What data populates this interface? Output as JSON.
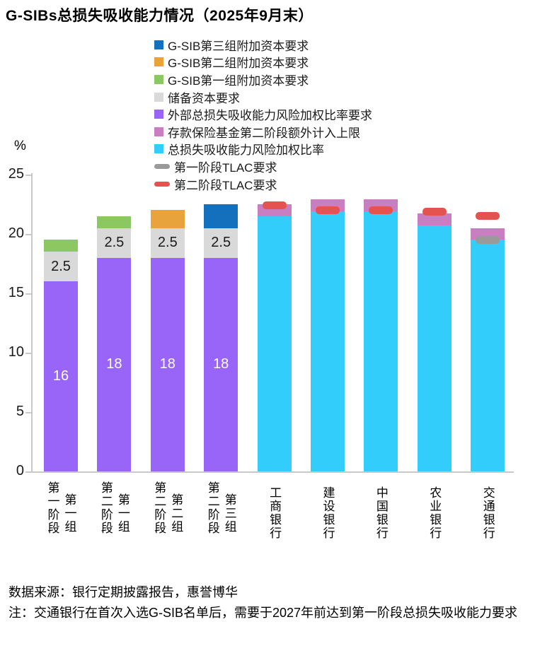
{
  "title": "G-SIBs总损失吸收能力情况（2025年9月末）",
  "footer": {
    "source": "数据来源：银行定期披露报告，惠誉博华",
    "note": "注：交通银行在首次入选G-SIB名单后，需要于2027年前达到第一阶段总损失吸收能力要求"
  },
  "colors": {
    "bucket3_blue": "#1470BD",
    "bucket2_orange": "#E8A33C",
    "bucket1_green": "#8CC862",
    "buffer_gray": "#D9D9D9",
    "tlac_req_purple": "#9865F8",
    "dif_pink": "#CA7EC2",
    "tlac_ratio_cyan": "#33CDFB",
    "phase1_dash_gray": "#9A9A9A",
    "phase2_dash_red": "#E4534F",
    "axis_line": "#C9C9C9"
  },
  "chart_data": {
    "type": "bar",
    "stacked": true,
    "title": "G-SIBs总损失吸收能力情况（2025年9月末）",
    "ylabel": "%",
    "ylim": [
      0,
      25
    ],
    "yticks": [
      0,
      5,
      10,
      15,
      20,
      25
    ],
    "grid": false,
    "legend_position": "top-center",
    "legend": [
      {
        "label": "G-SIB第三组附加资本要求",
        "color": "#1470BD",
        "marker": "square"
      },
      {
        "label": "G-SIB第二组附加资本要求",
        "color": "#E8A33C",
        "marker": "square"
      },
      {
        "label": "G-SIB第一组附加资本要求",
        "color": "#8CC862",
        "marker": "square"
      },
      {
        "label": "储备资本要求",
        "color": "#D9D9D9",
        "marker": "square"
      },
      {
        "label": "外部总损失吸收能力风险加权比率要求",
        "color": "#9865F8",
        "marker": "square"
      },
      {
        "label": "存款保险基金第二阶段额外计入上限",
        "color": "#CA7EC2",
        "marker": "square"
      },
      {
        "label": "总损失吸收能力风险加权比率",
        "color": "#33CDFB",
        "marker": "square"
      },
      {
        "label": "第一阶段TLAC要求",
        "color": "#9A9A9A",
        "marker": "dash"
      },
      {
        "label": "第二阶段TLAC要求",
        "color": "#E4534F",
        "marker": "dash"
      }
    ],
    "categories": [
      "第一阶段·第一组",
      "第二阶段·第一组",
      "第二阶段·第二组",
      "第二阶段·第三组",
      "工商银行",
      "建设银行",
      "中国银行",
      "农业银行",
      "交通银行"
    ],
    "bars": [
      {
        "labels": [
          "第一阶段",
          "第一组"
        ],
        "segments": [
          {
            "name": "外部总损失吸收能力风险加权比率要求",
            "value": 16,
            "color": "#9865F8",
            "label": "16",
            "label_color": "#ffffff"
          },
          {
            "name": "储备资本要求",
            "value": 2.5,
            "color": "#D9D9D9",
            "label": "2.5",
            "label_color": "#1a1a1a"
          },
          {
            "name": "G-SIB第一组附加资本要求",
            "value": 1,
            "color": "#8CC862"
          }
        ],
        "markers": []
      },
      {
        "labels": [
          "第二阶段",
          "第一组"
        ],
        "segments": [
          {
            "name": "外部总损失吸收能力风险加权比率要求",
            "value": 18,
            "color": "#9865F8",
            "label": "18",
            "label_color": "#ffffff"
          },
          {
            "name": "储备资本要求",
            "value": 2.5,
            "color": "#D9D9D9",
            "label": "2.5",
            "label_color": "#1a1a1a"
          },
          {
            "name": "G-SIB第一组附加资本要求",
            "value": 1,
            "color": "#8CC862"
          }
        ],
        "markers": []
      },
      {
        "labels": [
          "第二阶段",
          "第二组"
        ],
        "segments": [
          {
            "name": "外部总损失吸收能力风险加权比率要求",
            "value": 18,
            "color": "#9865F8",
            "label": "18",
            "label_color": "#ffffff"
          },
          {
            "name": "储备资本要求",
            "value": 2.5,
            "color": "#D9D9D9",
            "label": "2.5",
            "label_color": "#1a1a1a"
          },
          {
            "name": "G-SIB第二组附加资本要求",
            "value": 1.5,
            "color": "#E8A33C"
          }
        ],
        "markers": []
      },
      {
        "labels": [
          "第二阶段",
          "第三组"
        ],
        "segments": [
          {
            "name": "外部总损失吸收能力风险加权比率要求",
            "value": 18,
            "color": "#9865F8",
            "label": "18",
            "label_color": "#ffffff"
          },
          {
            "name": "储备资本要求",
            "value": 2.5,
            "color": "#D9D9D9",
            "label": "2.5",
            "label_color": "#1a1a1a"
          },
          {
            "name": "G-SIB第三组附加资本要求",
            "value": 2,
            "color": "#1470BD"
          }
        ],
        "markers": []
      },
      {
        "labels": [
          "工商银行"
        ],
        "segments": [
          {
            "name": "总损失吸收能力风险加权比率",
            "value": 21.5,
            "color": "#33CDFB"
          },
          {
            "name": "存款保险基金第二阶段额外计入上限",
            "value": 1.0,
            "color": "#CA7EC2"
          }
        ],
        "markers": [
          {
            "name": "第二阶段TLAC要求",
            "value": 22.4,
            "color": "#E4534F"
          }
        ]
      },
      {
        "labels": [
          "建设银行"
        ],
        "segments": [
          {
            "name": "总损失吸收能力风险加权比率",
            "value": 21.9,
            "color": "#33CDFB"
          },
          {
            "name": "存款保险基金第二阶段额外计入上限",
            "value": 1.0,
            "color": "#CA7EC2"
          }
        ],
        "markers": [
          {
            "name": "第二阶段TLAC要求",
            "value": 22.0,
            "color": "#E4534F"
          }
        ]
      },
      {
        "labels": [
          "中国银行"
        ],
        "segments": [
          {
            "name": "总损失吸收能力风险加权比率",
            "value": 21.9,
            "color": "#33CDFB"
          },
          {
            "name": "存款保险基金第二阶段额外计入上限",
            "value": 1.0,
            "color": "#CA7EC2"
          }
        ],
        "markers": [
          {
            "name": "第二阶段TLAC要求",
            "value": 22.0,
            "color": "#E4534F"
          }
        ]
      },
      {
        "labels": [
          "农业银行"
        ],
        "segments": [
          {
            "name": "总损失吸收能力风险加权比率",
            "value": 20.7,
            "color": "#33CDFB"
          },
          {
            "name": "存款保险基金第二阶段额外计入上限",
            "value": 1.0,
            "color": "#CA7EC2"
          }
        ],
        "markers": [
          {
            "name": "第二阶段TLAC要求",
            "value": 21.9,
            "color": "#E4534F"
          }
        ]
      },
      {
        "labels": [
          "交通银行"
        ],
        "segments": [
          {
            "name": "总损失吸收能力风险加权比率",
            "value": 19.5,
            "color": "#33CDFB"
          },
          {
            "name": "存款保险基金第二阶段额外计入上限",
            "value": 1.0,
            "color": "#CA7EC2"
          }
        ],
        "markers": [
          {
            "name": "第一阶段TLAC要求",
            "value": 19.5,
            "color": "#9A9A9A"
          },
          {
            "name": "第二阶段TLAC要求",
            "value": 21.5,
            "color": "#E4534F"
          }
        ]
      }
    ]
  }
}
